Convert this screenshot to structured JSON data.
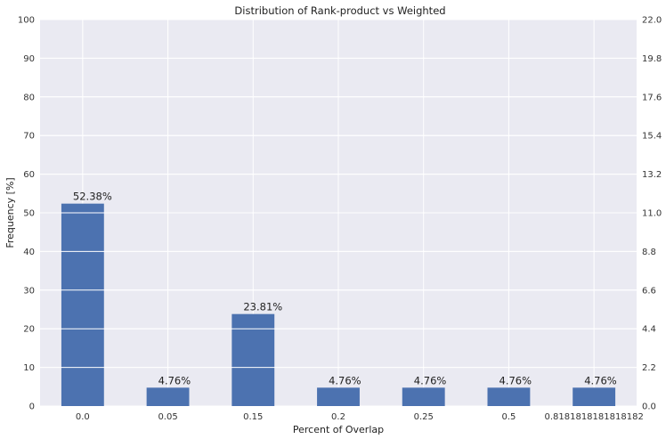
{
  "chart_data": {
    "type": "bar",
    "title": "Distribution of Rank-product vs Weighted",
    "xlabel": "Percent of Overlap",
    "ylabel": "Frequency [%]",
    "categories": [
      "0.0",
      "0.05",
      "0.15",
      "0.2",
      "0.25",
      "0.5",
      "0.8181818181818182"
    ],
    "values": [
      52.38,
      4.76,
      23.81,
      4.76,
      4.76,
      4.76,
      4.76
    ],
    "data_labels": [
      "52.38%",
      "4.76%",
      "23.81%",
      "4.76%",
      "4.76%",
      "4.76%",
      "4.76%"
    ],
    "ylim": [
      0,
      100
    ],
    "yticks": [
      "0",
      "10",
      "20",
      "30",
      "40",
      "50",
      "60",
      "70",
      "80",
      "90",
      "100"
    ],
    "y2lim": [
      0,
      22
    ],
    "y2ticks": [
      "0.0",
      "2.2",
      "4.4",
      "6.6",
      "8.8",
      "11.0",
      "13.2",
      "15.4",
      "17.6",
      "19.8",
      "22.0"
    ],
    "grid": true,
    "colors": {
      "bar": "#4c72b0",
      "plot_background": "#eaeaf2",
      "grid": "#ffffff"
    }
  }
}
